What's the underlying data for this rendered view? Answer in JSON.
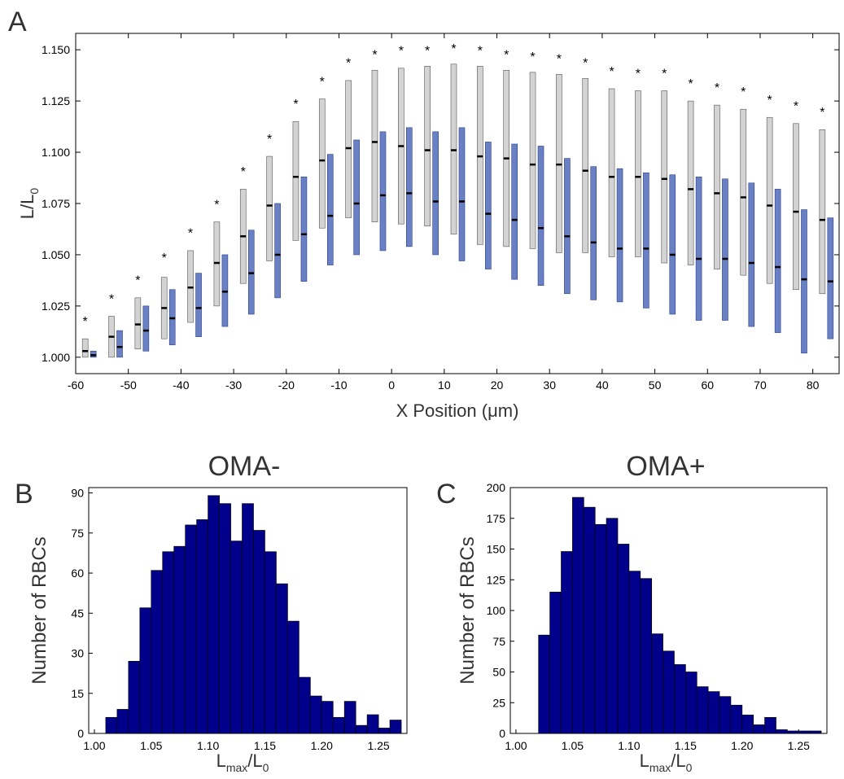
{
  "panels": {
    "a": "A",
    "b": "B",
    "c": "C"
  },
  "chart_data": [
    {
      "type": "box",
      "panel": "A",
      "xlabel": "X Position (μm)",
      "ylabel_main": "L/L",
      "ylabel_sub": "0",
      "xlim": [
        -60,
        85
      ],
      "ylim": [
        0.992,
        1.158
      ],
      "xticks": [
        -60,
        -50,
        -40,
        -30,
        -20,
        -10,
        0,
        10,
        20,
        30,
        40,
        50,
        60,
        70,
        80
      ],
      "yticks": [
        "1.000",
        "1.025",
        "1.050",
        "1.075",
        "1.100",
        "1.125",
        "1.150"
      ],
      "significance_marker": "*",
      "grey_color": "#d3d3d3",
      "blue_color": "#6a80c4",
      "x": [
        -57.5,
        -52.5,
        -47.5,
        -42.5,
        -37.5,
        -32.5,
        -27.5,
        -22.5,
        -17.5,
        -12.5,
        -7.5,
        -2.5,
        2.5,
        7.5,
        12.5,
        17.5,
        22.5,
        27.5,
        32.5,
        37.5,
        42.5,
        47.5,
        52.5,
        57.5,
        62.5,
        67.5,
        72.5,
        77.5,
        82.5
      ],
      "series": [
        {
          "name": "OMA-",
          "low": [
            1.0,
            1.0,
            1.004,
            1.009,
            1.017,
            1.025,
            1.036,
            1.047,
            1.057,
            1.063,
            1.068,
            1.066,
            1.065,
            1.064,
            1.06,
            1.055,
            1.054,
            1.053,
            1.051,
            1.051,
            1.049,
            1.049,
            1.046,
            1.045,
            1.043,
            1.04,
            1.036,
            1.033,
            1.031
          ],
          "median": [
            1.003,
            1.01,
            1.016,
            1.024,
            1.034,
            1.046,
            1.059,
            1.074,
            1.088,
            1.096,
            1.102,
            1.105,
            1.103,
            1.101,
            1.101,
            1.098,
            1.097,
            1.094,
            1.094,
            1.091,
            1.088,
            1.088,
            1.087,
            1.082,
            1.08,
            1.078,
            1.074,
            1.071,
            1.067
          ],
          "high": [
            1.009,
            1.02,
            1.029,
            1.039,
            1.052,
            1.066,
            1.082,
            1.098,
            1.115,
            1.126,
            1.135,
            1.14,
            1.141,
            1.142,
            1.143,
            1.142,
            1.14,
            1.139,
            1.138,
            1.136,
            1.131,
            1.13,
            1.13,
            1.125,
            1.123,
            1.121,
            1.117,
            1.114,
            1.111
          ],
          "star": [
            1.019,
            1.03,
            1.039,
            1.05,
            1.062,
            1.076,
            1.092,
            1.108,
            1.125,
            1.136,
            1.145,
            1.149,
            1.151,
            1.151,
            1.152,
            1.151,
            1.149,
            1.148,
            1.147,
            1.145,
            1.141,
            1.14,
            1.14,
            1.135,
            1.133,
            1.131,
            1.127,
            1.124,
            1.121
          ]
        },
        {
          "name": "OMA+",
          "low": [
            1.0,
            1.0,
            1.003,
            1.006,
            1.01,
            1.015,
            1.021,
            1.029,
            1.037,
            1.045,
            1.05,
            1.052,
            1.054,
            1.05,
            1.047,
            1.043,
            1.038,
            1.035,
            1.031,
            1.028,
            1.027,
            1.024,
            1.021,
            1.018,
            1.018,
            1.015,
            1.012,
            1.002,
            1.009
          ],
          "median": [
            1.001,
            1.005,
            1.013,
            1.019,
            1.024,
            1.032,
            1.041,
            1.05,
            1.06,
            1.069,
            1.075,
            1.079,
            1.08,
            1.076,
            1.076,
            1.07,
            1.067,
            1.063,
            1.059,
            1.056,
            1.053,
            1.053,
            1.05,
            1.048,
            1.048,
            1.046,
            1.044,
            1.038,
            1.037
          ],
          "high": [
            1.003,
            1.013,
            1.025,
            1.033,
            1.041,
            1.05,
            1.062,
            1.075,
            1.088,
            1.099,
            1.106,
            1.11,
            1.112,
            1.11,
            1.112,
            1.105,
            1.104,
            1.103,
            1.097,
            1.093,
            1.092,
            1.09,
            1.089,
            1.088,
            1.087,
            1.085,
            1.082,
            1.072,
            1.068
          ]
        }
      ]
    },
    {
      "type": "histogram",
      "panel": "B",
      "title": "OMA-",
      "xlabel_main": "L",
      "xlabel_sub1": "max",
      "xlabel_mid": "/L",
      "xlabel_sub2": "0",
      "ylabel": "Number of RBCs",
      "color": "#00008b",
      "xlim": [
        0.995,
        1.275
      ],
      "ylim": [
        0,
        92
      ],
      "xticks": [
        "1.00",
        "1.05",
        "1.10",
        "1.15",
        "1.20",
        "1.25"
      ],
      "yticks": [
        0,
        15,
        30,
        45,
        60,
        75,
        90
      ],
      "bin_start": 1.01,
      "bin_width": 0.01,
      "values": [
        6,
        9,
        27,
        47,
        61,
        68,
        70,
        78,
        80,
        89,
        86,
        72,
        86,
        76,
        68,
        56,
        42,
        21,
        14,
        12,
        6,
        12,
        3,
        7,
        2,
        5
      ]
    },
    {
      "type": "histogram",
      "panel": "C",
      "title": "OMA+",
      "xlabel_main": "L",
      "xlabel_sub1": "max",
      "xlabel_mid": "/L",
      "xlabel_sub2": "0",
      "ylabel": "Number of RBCs",
      "color": "#00008b",
      "xlim": [
        0.995,
        1.275
      ],
      "ylim": [
        0,
        200
      ],
      "xticks": [
        "1.00",
        "1.05",
        "1.10",
        "1.15",
        "1.20",
        "1.25"
      ],
      "yticks": [
        0,
        25,
        50,
        75,
        100,
        125,
        150,
        175,
        200
      ],
      "bin_start": 1.02,
      "bin_width": 0.01,
      "values": [
        80,
        115,
        148,
        192,
        184,
        170,
        175,
        154,
        132,
        126,
        81,
        67,
        56,
        50,
        38,
        34,
        30,
        23,
        15,
        7,
        13,
        3,
        2,
        2,
        2
      ]
    }
  ]
}
